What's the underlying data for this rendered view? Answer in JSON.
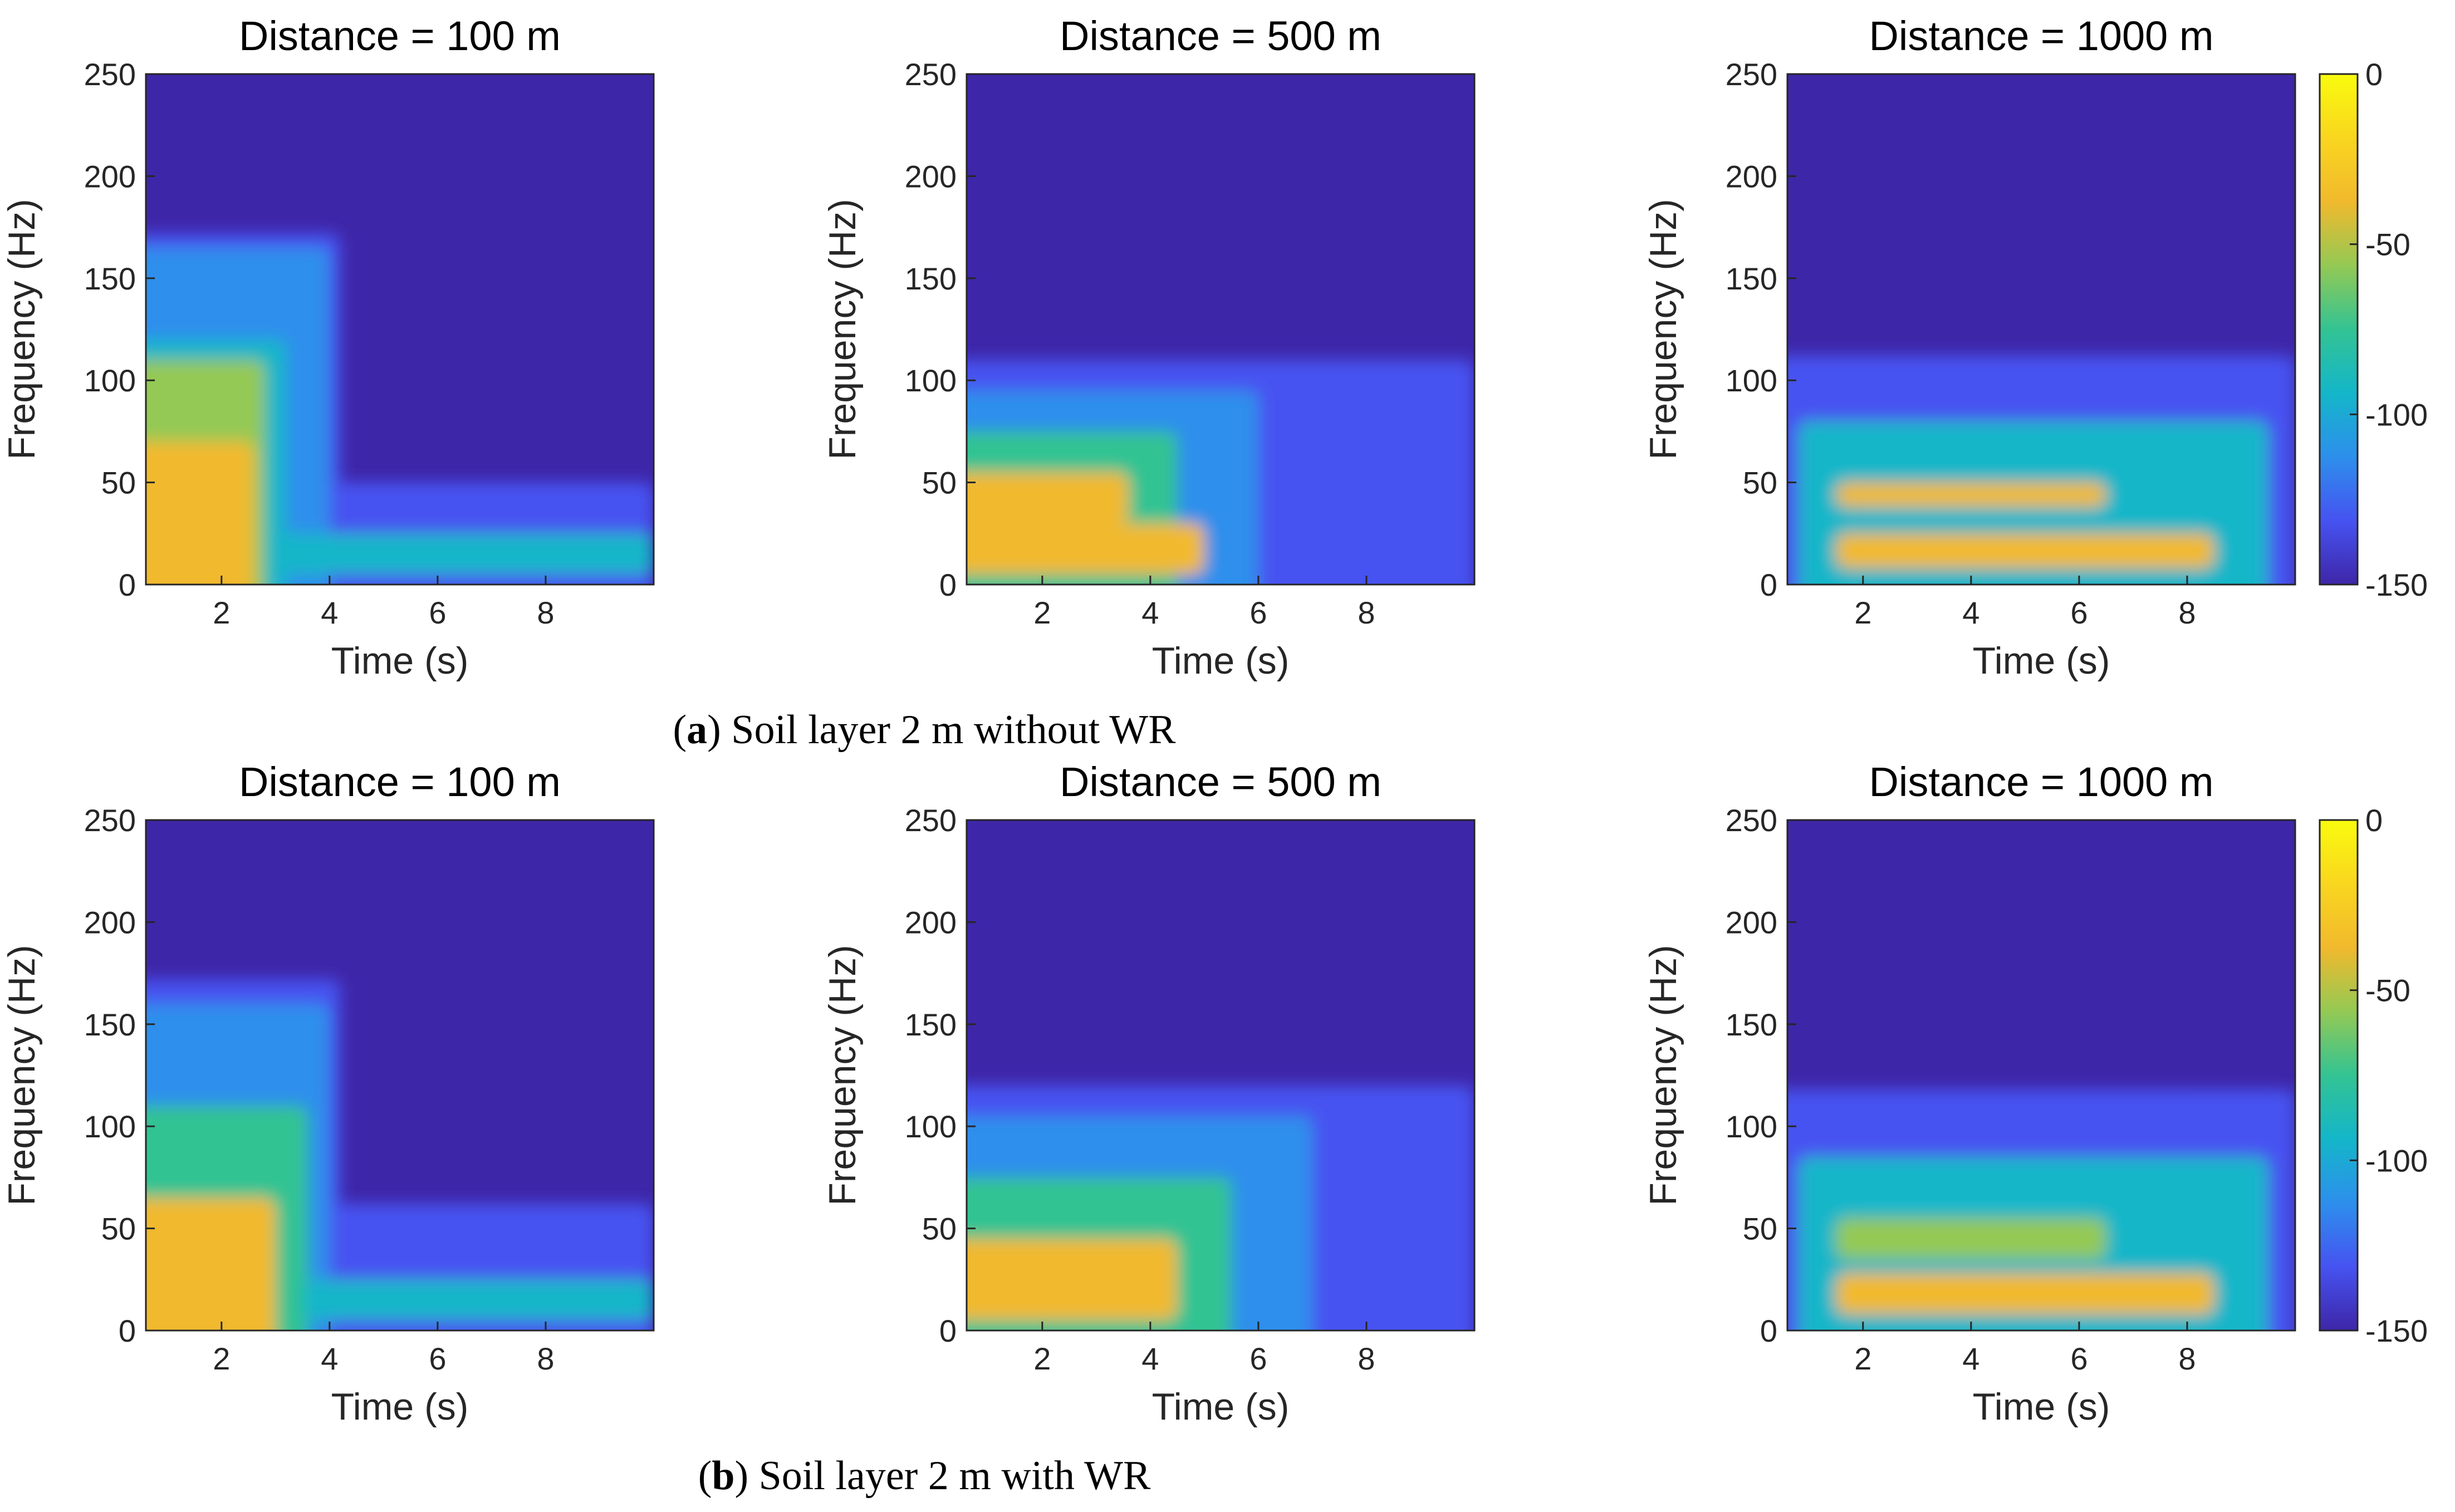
{
  "chart_data": [
    {
      "type": "heatmap",
      "panel": "a",
      "title": "Distance = 100 m",
      "xlabel": "Time (s)",
      "ylabel": "Frequency (Hz)",
      "xlim": [
        0.6,
        10
      ],
      "ylim": [
        0,
        250
      ],
      "xticks": [
        "2",
        "4",
        "6",
        "8"
      ],
      "yticks": [
        "0",
        "50",
        "100",
        "150",
        "200",
        "250"
      ],
      "energy_regions": [
        {
          "level_db": -130,
          "t": [
            0.6,
            4.2
          ],
          "f": [
            0,
            172
          ]
        },
        {
          "level_db": -130,
          "t": [
            0.6,
            10
          ],
          "f": [
            0,
            50
          ]
        },
        {
          "level_db": -115,
          "t": [
            0.6,
            4.0
          ],
          "f": [
            0,
            165
          ]
        },
        {
          "level_db": -85,
          "t": [
            0.6,
            3.2
          ],
          "f": [
            0,
            120
          ]
        },
        {
          "level_db": -60,
          "t": [
            0.6,
            2.8
          ],
          "f": [
            0,
            110
          ]
        },
        {
          "level_db": -40,
          "t": [
            0.6,
            2.6
          ],
          "f": [
            0,
            70
          ]
        },
        {
          "level_db": -100,
          "t": [
            3,
            10
          ],
          "f": [
            5,
            25
          ]
        }
      ]
    },
    {
      "type": "heatmap",
      "panel": "a",
      "title": "Distance = 500 m",
      "xlabel": "Time (s)",
      "ylabel": "Frequency (Hz)",
      "xlim": [
        0.6,
        10
      ],
      "ylim": [
        0,
        250
      ],
      "xticks": [
        "2",
        "4",
        "6",
        "8"
      ],
      "yticks": [
        "0",
        "50",
        "100",
        "150",
        "200",
        "250"
      ],
      "energy_regions": [
        {
          "level_db": -130,
          "t": [
            0.6,
            10
          ],
          "f": [
            0,
            110
          ]
        },
        {
          "level_db": -110,
          "t": [
            0.6,
            6.0
          ],
          "f": [
            0,
            95
          ]
        },
        {
          "level_db": -80,
          "t": [
            0.6,
            4.5
          ],
          "f": [
            0,
            75
          ]
        },
        {
          "level_db": -40,
          "t": [
            0.6,
            3.6
          ],
          "f": [
            30,
            55
          ]
        },
        {
          "level_db": -35,
          "t": [
            0.6,
            5.0
          ],
          "f": [
            5,
            30
          ]
        }
      ]
    },
    {
      "type": "heatmap",
      "panel": "a",
      "title": "Distance = 1000 m",
      "xlabel": "Time (s)",
      "ylabel": "Frequency (Hz)",
      "xlim": [
        0.6,
        10
      ],
      "ylim": [
        0,
        250
      ],
      "xticks": [
        "2",
        "4",
        "6",
        "8"
      ],
      "yticks": [
        "0",
        "50",
        "100",
        "150",
        "200",
        "250"
      ],
      "energy_regions": [
        {
          "level_db": -125,
          "t": [
            0.6,
            10
          ],
          "f": [
            0,
            112
          ]
        },
        {
          "level_db": -100,
          "t": [
            0.8,
            9.5
          ],
          "f": [
            0,
            80
          ]
        },
        {
          "level_db": -45,
          "t": [
            1.5,
            6.5
          ],
          "f": [
            38,
            50
          ]
        },
        {
          "level_db": -40,
          "t": [
            1.5,
            8.5
          ],
          "f": [
            8,
            25
          ]
        }
      ]
    },
    {
      "type": "heatmap",
      "panel": "b",
      "title": "Distance = 100 m",
      "xlabel": "Time (s)",
      "ylabel": "Frequency (Hz)",
      "xlim": [
        0.6,
        10
      ],
      "ylim": [
        0,
        250
      ],
      "xticks": [
        "2",
        "4",
        "6",
        "8"
      ],
      "yticks": [
        "0",
        "50",
        "100",
        "150",
        "200",
        "250"
      ],
      "energy_regions": [
        {
          "level_db": -130,
          "t": [
            0.6,
            4.2
          ],
          "f": [
            0,
            172
          ]
        },
        {
          "level_db": -130,
          "t": [
            0.6,
            10
          ],
          "f": [
            0,
            62
          ]
        },
        {
          "level_db": -105,
          "t": [
            0.6,
            4.0
          ],
          "f": [
            0,
            160
          ]
        },
        {
          "level_db": -70,
          "t": [
            0.6,
            3.6
          ],
          "f": [
            0,
            110
          ]
        },
        {
          "level_db": -40,
          "t": [
            0.6,
            3.0
          ],
          "f": [
            0,
            65
          ]
        },
        {
          "level_db": -100,
          "t": [
            3.5,
            10
          ],
          "f": [
            5,
            25
          ]
        }
      ]
    },
    {
      "type": "heatmap",
      "panel": "b",
      "title": "Distance = 500 m",
      "xlabel": "Time (s)",
      "ylabel": "Frequency (Hz)",
      "xlim": [
        0.6,
        10
      ],
      "ylim": [
        0,
        250
      ],
      "xticks": [
        "2",
        "4",
        "6",
        "8"
      ],
      "yticks": [
        "0",
        "50",
        "100",
        "150",
        "200",
        "250"
      ],
      "energy_regions": [
        {
          "level_db": -130,
          "t": [
            0.6,
            10
          ],
          "f": [
            0,
            120
          ]
        },
        {
          "level_db": -105,
          "t": [
            0.6,
            7.0
          ],
          "f": [
            0,
            105
          ]
        },
        {
          "level_db": -70,
          "t": [
            0.6,
            5.5
          ],
          "f": [
            0,
            75
          ]
        },
        {
          "level_db": -35,
          "t": [
            0.6,
            4.5
          ],
          "f": [
            5,
            45
          ]
        }
      ]
    },
    {
      "type": "heatmap",
      "panel": "b",
      "title": "Distance = 1000 m",
      "xlabel": "Time (s)",
      "ylabel": "Frequency (Hz)",
      "xlim": [
        0.6,
        10
      ],
      "ylim": [
        0,
        250
      ],
      "xticks": [
        "2",
        "4",
        "6",
        "8"
      ],
      "yticks": [
        "0",
        "50",
        "100",
        "150",
        "200",
        "250"
      ],
      "energy_regions": [
        {
          "level_db": -125,
          "t": [
            0.6,
            10
          ],
          "f": [
            0,
            118
          ]
        },
        {
          "level_db": -100,
          "t": [
            0.8,
            9.5
          ],
          "f": [
            0,
            85
          ]
        },
        {
          "level_db": -50,
          "t": [
            1.5,
            6.5
          ],
          "f": [
            35,
            55
          ]
        },
        {
          "level_db": -40,
          "t": [
            1.5,
            8.5
          ],
          "f": [
            8,
            28
          ]
        }
      ]
    }
  ],
  "colorbar": {
    "range": [
      -150,
      0
    ],
    "ticks": [
      "0",
      "-50",
      "-100",
      "-150"
    ],
    "colors": [
      "#3e26a8",
      "#4653f1",
      "#2d8fec",
      "#14b6c9",
      "#33c393",
      "#94c954",
      "#f1b92d",
      "#f9d61f",
      "#f9fb0e"
    ]
  },
  "background_color": "#3e26a8",
  "captions": {
    "a": {
      "letter": "a",
      "text": "Soil layer 2 m without WR"
    },
    "b": {
      "letter": "b",
      "text": "Soil layer 2 m with WR"
    }
  }
}
